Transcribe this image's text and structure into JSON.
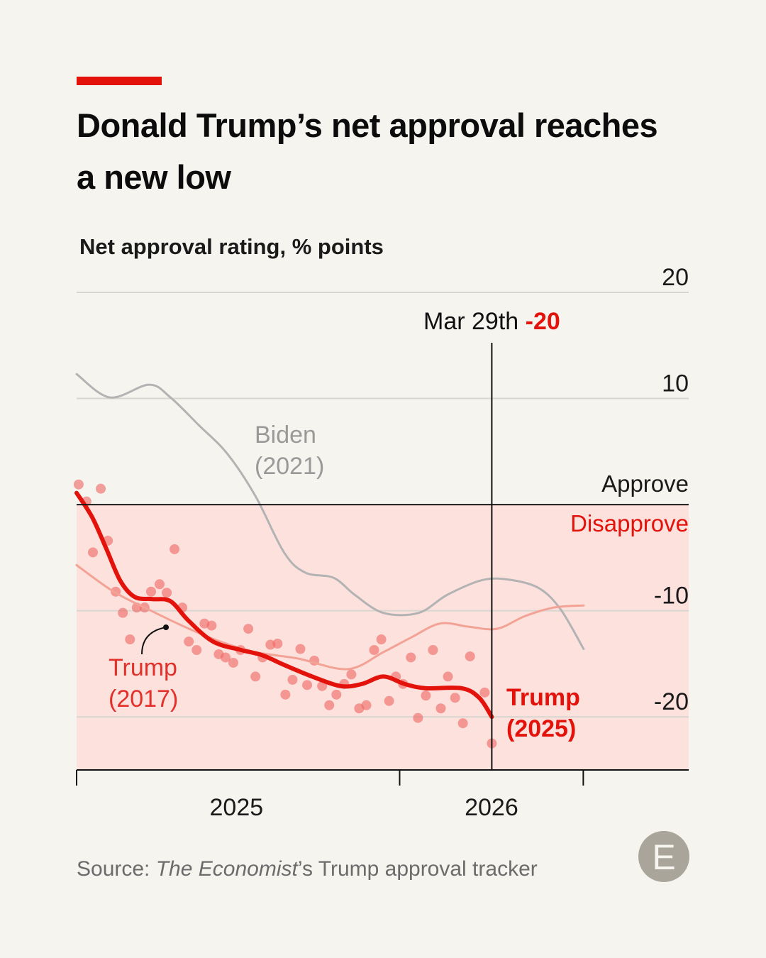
{
  "chart_data": {
    "type": "line",
    "title": "Donald Trump’s net approval reaches a new low",
    "subtitle": "Net approval rating, % points",
    "source": [
      "Source: ",
      "The Economist",
      "’s Trump approval tracker"
    ],
    "logo": "E",
    "ylim": [
      -25,
      20
    ],
    "yticks": [
      20,
      10,
      -10,
      -20
    ],
    "xlim": [
      2025.05,
      2026.85
    ],
    "xticks": [
      2025.05,
      2026,
      2026.54
    ],
    "x_period_labels": [
      {
        "label": "2025",
        "value": 2025.52
      },
      {
        "label": "2026",
        "value": 2026.27
      }
    ],
    "grid": true,
    "zero_line_color": "#1a1a1a",
    "negative_fill": "#fde1dd",
    "above_label": "Approve",
    "below_label": "Disapprove",
    "below_label_color": "#e3120b",
    "marker": {
      "x": 2026.271,
      "label": "Mar 29th",
      "value": -20,
      "color": "#e3120b"
    },
    "series": [
      {
        "name": "Biden (2021)",
        "color": "#b3b3b3",
        "line_width": 3,
        "x": [
          2025.05,
          2025.148,
          2025.263,
          2025.326,
          2025.409,
          2025.493,
          2025.576,
          2025.66,
          2025.722,
          2025.806,
          2025.868,
          2025.952,
          2026.056,
          2026.14,
          2026.244,
          2026.328,
          2026.411,
          2026.474,
          2026.541
        ],
        "values": [
          12.3,
          10.1,
          11.3,
          10.1,
          7.5,
          4.8,
          0.8,
          -4.5,
          -6.4,
          -6.9,
          -8.5,
          -10.2,
          -10.2,
          -8.5,
          -7.1,
          -7.1,
          -7.9,
          -9.9,
          -13.6
        ]
      },
      {
        "name": "Trump (2017)",
        "color": "#f3a296",
        "line_width": 3,
        "x": [
          2025.05,
          2025.159,
          2025.263,
          2025.367,
          2025.472,
          2025.576,
          2025.701,
          2025.847,
          2025.952,
          2026.035,
          2026.119,
          2026.202,
          2026.286,
          2026.369,
          2026.453,
          2026.541
        ],
        "values": [
          -5.7,
          -8.2,
          -9.9,
          -11.5,
          -12.9,
          -13.9,
          -14.5,
          -15.5,
          -13.9,
          -12.5,
          -11.2,
          -11.5,
          -11.7,
          -10.5,
          -9.7,
          -9.5
        ]
      },
      {
        "name": "Trump (2025)",
        "color": "#e3120b",
        "line_width": 6,
        "x": [
          2025.05,
          2025.096,
          2025.138,
          2025.179,
          2025.221,
          2025.273,
          2025.326,
          2025.378,
          2025.451,
          2025.534,
          2025.597,
          2025.66,
          2025.743,
          2025.827,
          2025.889,
          2025.952,
          2026.015,
          2026.077,
          2026.182,
          2026.234,
          2026.271
        ],
        "values": [
          1.1,
          -1.2,
          -4.2,
          -7.2,
          -8.7,
          -8.9,
          -9.1,
          -10.9,
          -12.9,
          -13.7,
          -14.2,
          -15.1,
          -16.2,
          -17.1,
          -16.9,
          -16.2,
          -16.9,
          -17.3,
          -17.3,
          -18.2,
          -20
        ]
      }
    ],
    "polls": {
      "color": "#ef6461",
      "x": [
        2025.056,
        2025.079,
        2025.121,
        2025.098,
        2025.142,
        2025.165,
        2025.186,
        2025.207,
        2025.227,
        2025.25,
        2025.269,
        2025.294,
        2025.315,
        2025.338,
        2025.361,
        2025.38,
        2025.403,
        2025.426,
        2025.447,
        2025.468,
        2025.488,
        2025.511,
        2025.532,
        2025.555,
        2025.576,
        2025.597,
        2025.62,
        2025.641,
        2025.664,
        2025.685,
        2025.708,
        2025.728,
        2025.749,
        2025.772,
        2025.793,
        2025.814,
        2025.837,
        2025.858,
        2025.881,
        2025.902,
        2025.925,
        2025.946,
        2025.969,
        2025.989,
        2026.01,
        2026.033,
        2026.054,
        2026.077,
        2026.098,
        2026.121,
        2026.142,
        2026.163,
        2026.186,
        2026.207,
        2026.25,
        2026.271
      ],
      "y": [
        1.9,
        0.3,
        1.5,
        -4.5,
        -3.4,
        -8.2,
        -10.2,
        -12.7,
        -9.7,
        -9.7,
        -8.2,
        -7.5,
        -8.3,
        -4.2,
        -9.7,
        -12.9,
        -13.7,
        -11.2,
        -11.4,
        -14.1,
        -14.4,
        -14.9,
        -13.7,
        -11.7,
        -16.2,
        -14.4,
        -13.2,
        -13.1,
        -17.9,
        -16.5,
        -13.6,
        -17,
        -14.7,
        -17.1,
        -18.9,
        -17.9,
        -16.9,
        -16,
        -19.2,
        -18.9,
        -13.7,
        -12.7,
        -18.5,
        -16.2,
        -16.9,
        -14.4,
        -20.1,
        -18,
        -13.7,
        -19.2,
        -16.2,
        -18.2,
        -20.6,
        -14.3,
        -17.7,
        -22.5
      ]
    }
  }
}
